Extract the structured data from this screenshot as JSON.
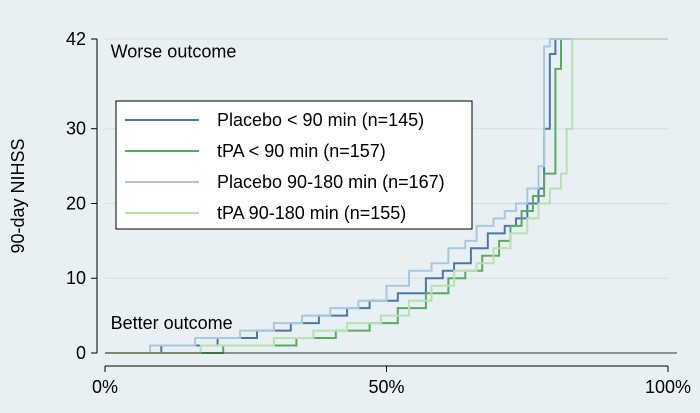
{
  "chart_data": {
    "type": "line",
    "title": "",
    "xlabel": "",
    "ylabel": "90-day NIHSS",
    "xlim": [
      0,
      100
    ],
    "ylim": [
      0,
      42
    ],
    "x_ticks": [
      0,
      50,
      100
    ],
    "x_tick_labels": [
      "0%",
      "50%",
      "100%"
    ],
    "y_ticks": [
      0,
      10,
      20,
      30,
      42
    ],
    "y_tick_labels": [
      "0",
      "10",
      "20",
      "30",
      "42"
    ],
    "grid": "horizontal",
    "legend_position": "upper-left",
    "annotations": [
      {
        "text": "Worse outcome",
        "x": 1,
        "y": 39.5
      },
      {
        "text": "Better outcome",
        "x": 1,
        "y": 3.2
      }
    ],
    "series": [
      {
        "name": "Placebo < 90 min (n=145)",
        "color": "#4a77a6",
        "x": [
          0,
          10,
          10,
          20,
          20,
          27,
          27,
          33,
          33,
          38,
          38,
          43,
          43,
          47,
          47,
          52,
          52,
          57,
          57,
          60,
          60,
          62,
          62,
          65,
          65,
          68,
          68,
          71,
          71,
          73,
          73,
          75,
          75,
          77,
          77,
          78,
          78,
          79,
          79,
          80,
          80,
          100
        ],
        "y": [
          0,
          0,
          1,
          1,
          2,
          2,
          3,
          3,
          4,
          4,
          5,
          5,
          6,
          6,
          7,
          7,
          8,
          8,
          10,
          10,
          11,
          11,
          12,
          12,
          14,
          14,
          16,
          16,
          17,
          17,
          18,
          18,
          20,
          20,
          22,
          22,
          30,
          30,
          40,
          40,
          42,
          42
        ]
      },
      {
        "name": "tPA < 90 min (n=157)",
        "color": "#5aaa5e",
        "x": [
          0,
          21,
          21,
          34,
          34,
          41,
          41,
          47,
          47,
          52,
          52,
          57,
          57,
          61,
          61,
          64,
          64,
          67,
          67,
          70,
          70,
          72,
          72,
          74,
          74,
          76,
          76,
          78,
          78,
          80,
          80,
          81,
          81,
          100
        ],
        "y": [
          0,
          0,
          1,
          1,
          2,
          2,
          3,
          3,
          4,
          4,
          6,
          6,
          8,
          8,
          10,
          10,
          11,
          11,
          13,
          13,
          15,
          15,
          17,
          17,
          19,
          19,
          21,
          21,
          24,
          24,
          38,
          38,
          42,
          42
        ]
      },
      {
        "name": "Placebo 90-180 min (n=167)",
        "color": "#a9c8de",
        "x": [
          0,
          8,
          8,
          16,
          16,
          24,
          24,
          30,
          30,
          35,
          35,
          40,
          40,
          45,
          45,
          50,
          50,
          54,
          54,
          58,
          58,
          61,
          61,
          64,
          64,
          66,
          66,
          69,
          69,
          71,
          71,
          73,
          73,
          75,
          75,
          77,
          77,
          78,
          78,
          79,
          79,
          100
        ],
        "y": [
          0,
          0,
          1,
          1,
          2,
          2,
          3,
          3,
          4,
          4,
          5,
          5,
          6,
          6,
          7,
          7,
          9,
          9,
          11,
          11,
          12,
          12,
          14,
          14,
          15,
          15,
          17,
          17,
          18,
          18,
          19,
          19,
          20,
          20,
          22,
          22,
          25,
          25,
          41,
          41,
          42,
          42
        ]
      },
      {
        "name": "tPA 90-180 min (n=155)",
        "color": "#b8e0b0",
        "x": [
          0,
          17,
          17,
          30,
          30,
          37,
          37,
          43,
          43,
          49,
          49,
          54,
          54,
          58,
          58,
          62,
          62,
          66,
          66,
          69,
          69,
          72,
          72,
          75,
          75,
          77,
          77,
          79,
          79,
          81,
          81,
          82,
          82,
          83,
          83,
          100
        ],
        "y": [
          0,
          0,
          1,
          1,
          2,
          2,
          3,
          3,
          4,
          4,
          5,
          5,
          7,
          7,
          9,
          9,
          11,
          11,
          12,
          12,
          14,
          14,
          16,
          16,
          18,
          18,
          20,
          20,
          22,
          22,
          24,
          24,
          30,
          30,
          42,
          42
        ]
      }
    ]
  }
}
